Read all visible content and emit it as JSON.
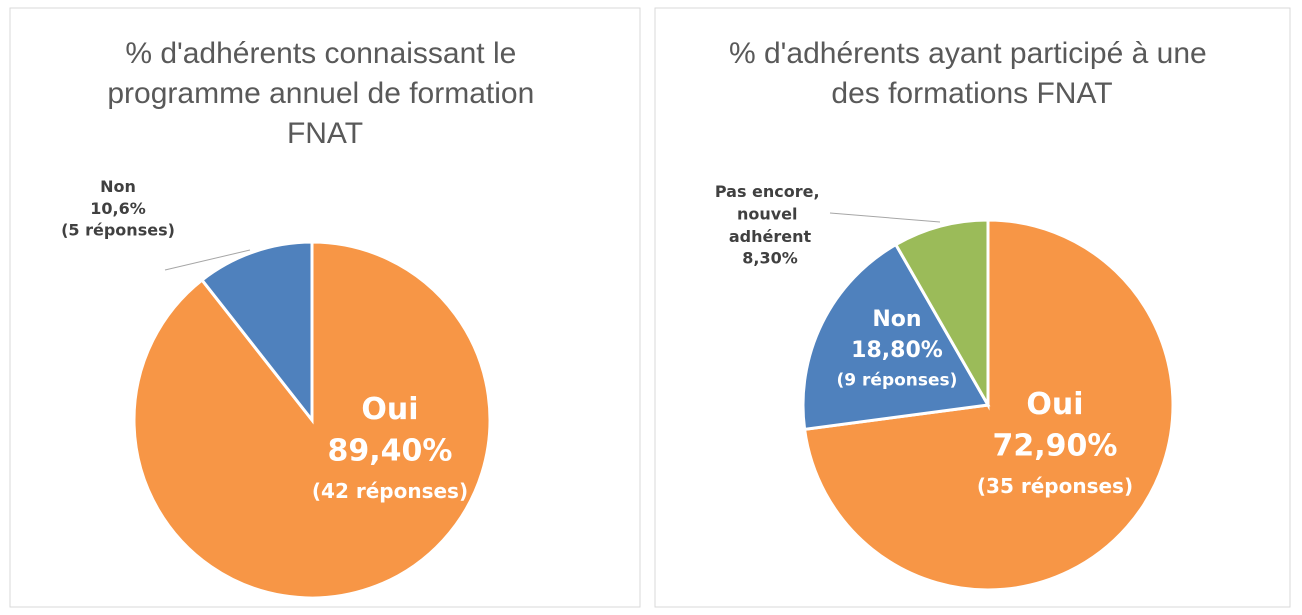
{
  "chart_data": [
    {
      "type": "pie",
      "title": "% d'adhérents connaissant le programme annuel de formation FNAT",
      "categories": [
        "Oui",
        "Non"
      ],
      "values": [
        89.4,
        10.6
      ],
      "value_labels": [
        "89,40%",
        "10,6%"
      ],
      "response_labels": [
        "(42 réponses)",
        "(5 réponses)"
      ],
      "colors": [
        "#f79646",
        "#4f81bd"
      ]
    },
    {
      "type": "pie",
      "title": "% d'adhérents ayant participé à une des formations FNAT",
      "categories": [
        "Oui",
        "Non",
        "Pas encore, nouvel adhérent"
      ],
      "values": [
        72.9,
        18.8,
        8.3
      ],
      "value_labels": [
        "72,90%",
        "18,80%",
        "8,30%"
      ],
      "response_labels": [
        "(35 réponses)",
        "(9 réponses)",
        null
      ],
      "colors": [
        "#f79646",
        "#4f81bd",
        "#9bbb59"
      ]
    }
  ]
}
